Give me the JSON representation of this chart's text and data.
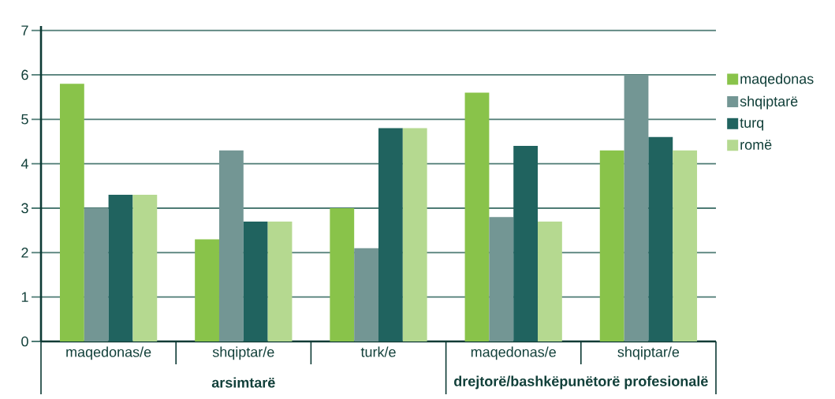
{
  "chart_data": {
    "type": "bar",
    "categories": [
      "maqedonas/e",
      "shqiptar/e",
      "turk/e",
      "maqedonas/e",
      "shqiptar/e"
    ],
    "series": [
      {
        "name": "maqedonas",
        "color": "#89c34a",
        "values": [
          5.8,
          2.3,
          3.0,
          5.6,
          4.3
        ]
      },
      {
        "name": "shqiptarë",
        "color": "#739694",
        "values": [
          3.0,
          4.3,
          2.1,
          2.8,
          6.0
        ]
      },
      {
        "name": "turq",
        "color": "#20635f",
        "values": [
          3.3,
          2.7,
          4.8,
          4.4,
          4.6
        ]
      },
      {
        "name": "romë",
        "color": "#b5d990",
        "values": [
          3.3,
          2.7,
          4.8,
          2.7,
          4.3
        ]
      }
    ],
    "ylim": [
      0,
      7.1
    ],
    "yticks": [
      0,
      1,
      2,
      3,
      4,
      5,
      6,
      7
    ],
    "grid": "y",
    "legend": "right",
    "annotations": [
      "arsimtarë",
      "drejtorë/bashkëpunëtorë profesionalë"
    ]
  }
}
